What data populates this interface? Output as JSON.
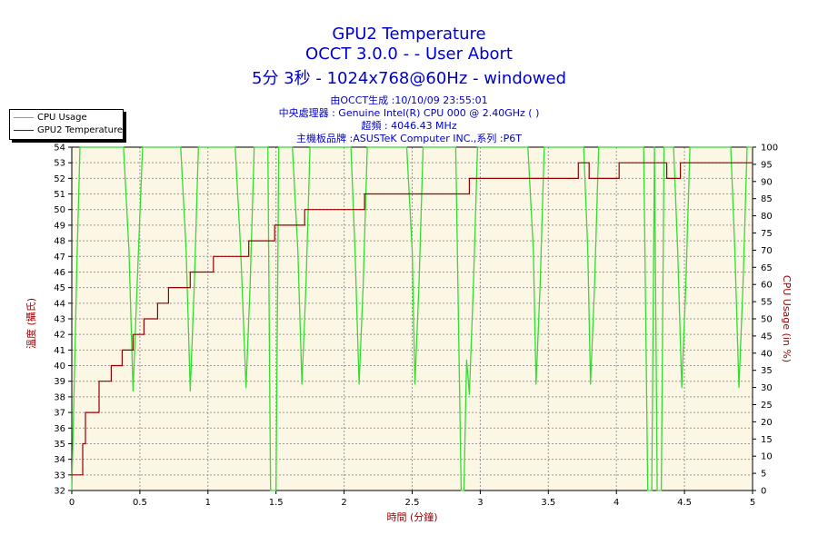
{
  "title_lines": [
    "GPU2 Temperature",
    "OCCT 3.0.0 -  - User Abort",
    "5分 3秒 - 1024x768@60Hz - windowed"
  ],
  "info_lines": [
    "由OCCT生成 :10/10/09 23:55:01",
    "中央處理器 : Genuine Intel(R) CPU 000 @ 2.40GHz (  )",
    "超頻 : 4046.43 MHz",
    "主機板品牌 :ASUSTeK Computer INC.,系列 :P6T"
  ],
  "colors": {
    "title": "#0000cc",
    "plot_bg": "#fcf6e4",
    "grid": "#999999",
    "cpu": "#33dd33",
    "temp": "#990000",
    "axis_label": "#990000"
  },
  "chart_data": {
    "type": "line",
    "xlabel": "時間 (分鐘)",
    "ylabel": "溫度 (攝氏)",
    "y2label": "CPU Usage (in %)",
    "xlim": [
      0,
      5
    ],
    "ylim": [
      32,
      54
    ],
    "y2lim": [
      0,
      100
    ],
    "x_ticks": [
      "0",
      "0.5",
      "1",
      "1.5",
      "2",
      "2.5",
      "3",
      "3.5",
      "4",
      "4.5",
      "5"
    ],
    "y_ticks": [
      "32",
      "33",
      "34",
      "35",
      "36",
      "37",
      "38",
      "39",
      "40",
      "41",
      "42",
      "43",
      "44",
      "45",
      "46",
      "47",
      "48",
      "49",
      "50",
      "51",
      "52",
      "53",
      "54"
    ],
    "y2_ticks": [
      "0",
      "5",
      "10",
      "15",
      "20",
      "25",
      "30",
      "35",
      "40",
      "45",
      "50",
      "55",
      "60",
      "65",
      "70",
      "75",
      "80",
      "85",
      "90",
      "95",
      "100"
    ],
    "grid": true,
    "legend_position": "top-left",
    "series": [
      {
        "name": "CPU Usage",
        "axis": "right",
        "x": [
          0,
          0.02,
          0.04,
          0.06,
          0.08,
          0.1,
          0.38,
          0.42,
          0.45,
          0.48,
          0.52,
          0.8,
          0.84,
          0.87,
          0.9,
          0.93,
          1.2,
          1.24,
          1.28,
          1.31,
          1.34,
          1.44,
          1.46,
          1.48,
          1.5,
          1.52,
          1.62,
          1.66,
          1.69,
          1.72,
          1.75,
          2.05,
          2.08,
          2.11,
          2.14,
          2.17,
          2.46,
          2.5,
          2.52,
          2.55,
          2.58,
          2.82,
          2.86,
          2.88,
          2.9,
          2.92,
          2.95,
          2.98,
          3.35,
          3.39,
          3.41,
          3.44,
          3.47,
          3.76,
          3.79,
          3.81,
          3.84,
          3.87,
          4.2,
          4.23,
          4.26,
          4.28,
          4.3,
          4.33,
          4.35,
          4.37,
          4.42,
          4.45,
          4.48,
          4.51,
          4.54,
          4.84,
          4.87,
          4.9,
          4.93,
          4.96,
          5.0
        ],
        "values": [
          0,
          35,
          70,
          100,
          100,
          100,
          100,
          70,
          29,
          60,
          100,
          100,
          70,
          29,
          60,
          100,
          100,
          70,
          30,
          60,
          100,
          100,
          0,
          0,
          0,
          100,
          100,
          70,
          31,
          60,
          100,
          100,
          70,
          31,
          60,
          100,
          100,
          70,
          31,
          60,
          100,
          100,
          0,
          0,
          38,
          28,
          60,
          100,
          100,
          70,
          31,
          60,
          100,
          100,
          70,
          31,
          60,
          100,
          100,
          0,
          0,
          100,
          0,
          0,
          100,
          100,
          100,
          70,
          30,
          60,
          100,
          100,
          70,
          30,
          60,
          100,
          100
        ]
      },
      {
        "name": "GPU2 Temperature",
        "axis": "left",
        "steps": [
          [
            0,
            33
          ],
          [
            0.08,
            35
          ],
          [
            0.1,
            37
          ],
          [
            0.2,
            39
          ],
          [
            0.29,
            40
          ],
          [
            0.37,
            41
          ],
          [
            0.45,
            42
          ],
          [
            0.53,
            43
          ],
          [
            0.63,
            44
          ],
          [
            0.71,
            45
          ],
          [
            0.87,
            46
          ],
          [
            1.04,
            47
          ],
          [
            1.3,
            48
          ],
          [
            1.49,
            49
          ],
          [
            1.71,
            50
          ],
          [
            2.15,
            51
          ],
          [
            2.92,
            52
          ],
          [
            3.72,
            53
          ],
          [
            3.8,
            52
          ],
          [
            4.02,
            53
          ],
          [
            4.37,
            52
          ],
          [
            4.47,
            53
          ],
          [
            5.0,
            53
          ]
        ]
      }
    ]
  }
}
